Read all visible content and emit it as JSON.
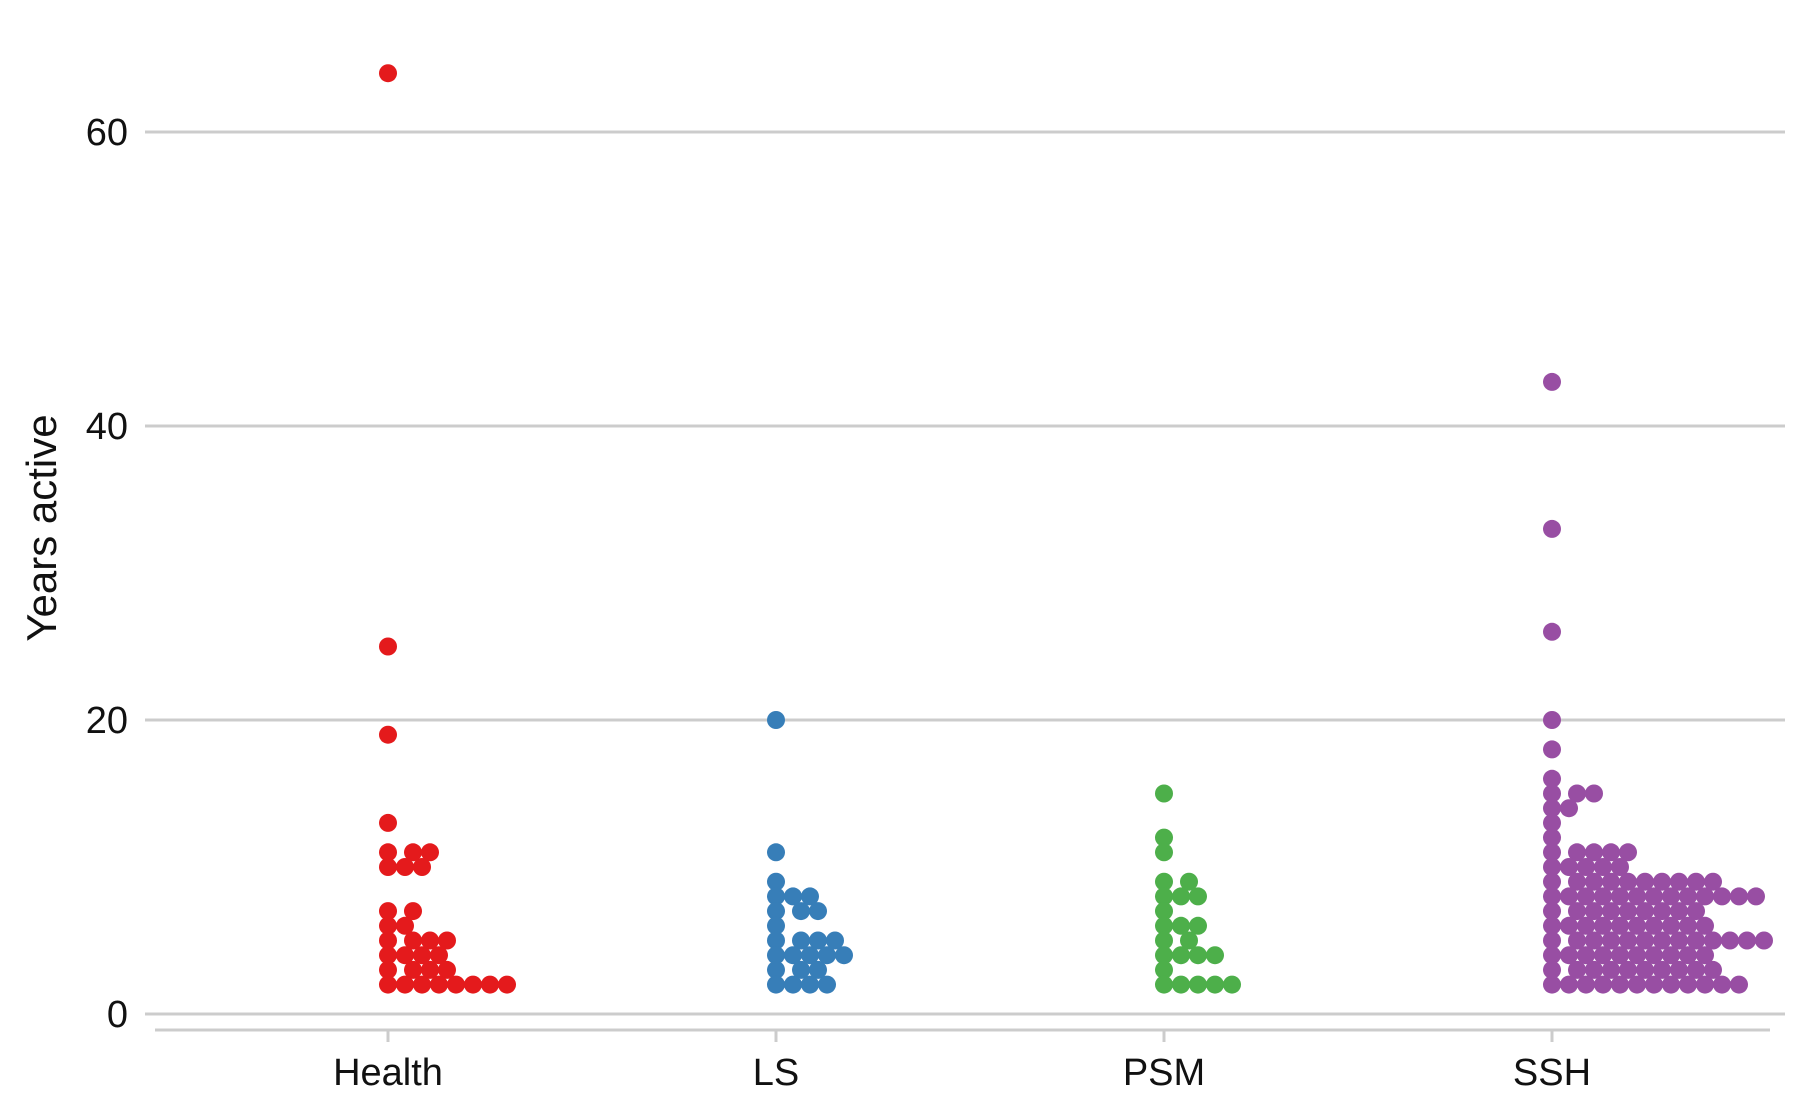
{
  "chart_data": {
    "type": "scatter",
    "subtype": "beeswarm",
    "title": "",
    "xlabel": "",
    "ylabel": "Years active",
    "categories": [
      "Health",
      "LS",
      "PSM",
      "SSH"
    ],
    "ylim": [
      0,
      65
    ],
    "yticks": [
      0,
      20,
      40,
      60
    ],
    "grid": "horizontal",
    "legend": "none",
    "series": [
      {
        "category": "Health",
        "color": "#E41A1C",
        "values": [
          64,
          25,
          19,
          13,
          11,
          11,
          11,
          10,
          10,
          10,
          7,
          7,
          6,
          6,
          5,
          5,
          5,
          5,
          4,
          4,
          4,
          4,
          3,
          3,
          3,
          3,
          2,
          2,
          2,
          2,
          2,
          2,
          2,
          2
        ]
      },
      {
        "category": "LS",
        "color": "#377EB8",
        "values": [
          20,
          11,
          9,
          8,
          8,
          8,
          7,
          7,
          7,
          6,
          5,
          5,
          5,
          5,
          4,
          4,
          4,
          4,
          4,
          3,
          3,
          3,
          2,
          2,
          2,
          2
        ]
      },
      {
        "category": "PSM",
        "color": "#4DAF4A",
        "values": [
          15,
          12,
          11,
          9,
          9,
          8,
          8,
          8,
          7,
          6,
          6,
          6,
          5,
          5,
          4,
          4,
          4,
          4,
          3,
          2,
          2,
          2,
          2,
          2
        ]
      },
      {
        "category": "SSH",
        "color": "#984EA3",
        "values": [
          43,
          33,
          26,
          20,
          18,
          16,
          15,
          15,
          15,
          14,
          14,
          13,
          12,
          11,
          11,
          11,
          11,
          11,
          10,
          10,
          10,
          10,
          10,
          9,
          9,
          9,
          9,
          9,
          9,
          9,
          9,
          9,
          9,
          8,
          8,
          8,
          8,
          8,
          8,
          8,
          8,
          8,
          8,
          8,
          8,
          8,
          7,
          7,
          7,
          7,
          7,
          7,
          7,
          7,
          7,
          6,
          6,
          6,
          6,
          6,
          6,
          6,
          6,
          6,
          6,
          5,
          5,
          5,
          5,
          5,
          5,
          5,
          5,
          5,
          5,
          5,
          5,
          5,
          4,
          4,
          4,
          4,
          4,
          4,
          4,
          4,
          4,
          4,
          3,
          3,
          3,
          3,
          3,
          3,
          3,
          3,
          3,
          3,
          2,
          2,
          2,
          2,
          2,
          2,
          2,
          2,
          2,
          2,
          2,
          2
        ]
      }
    ]
  }
}
